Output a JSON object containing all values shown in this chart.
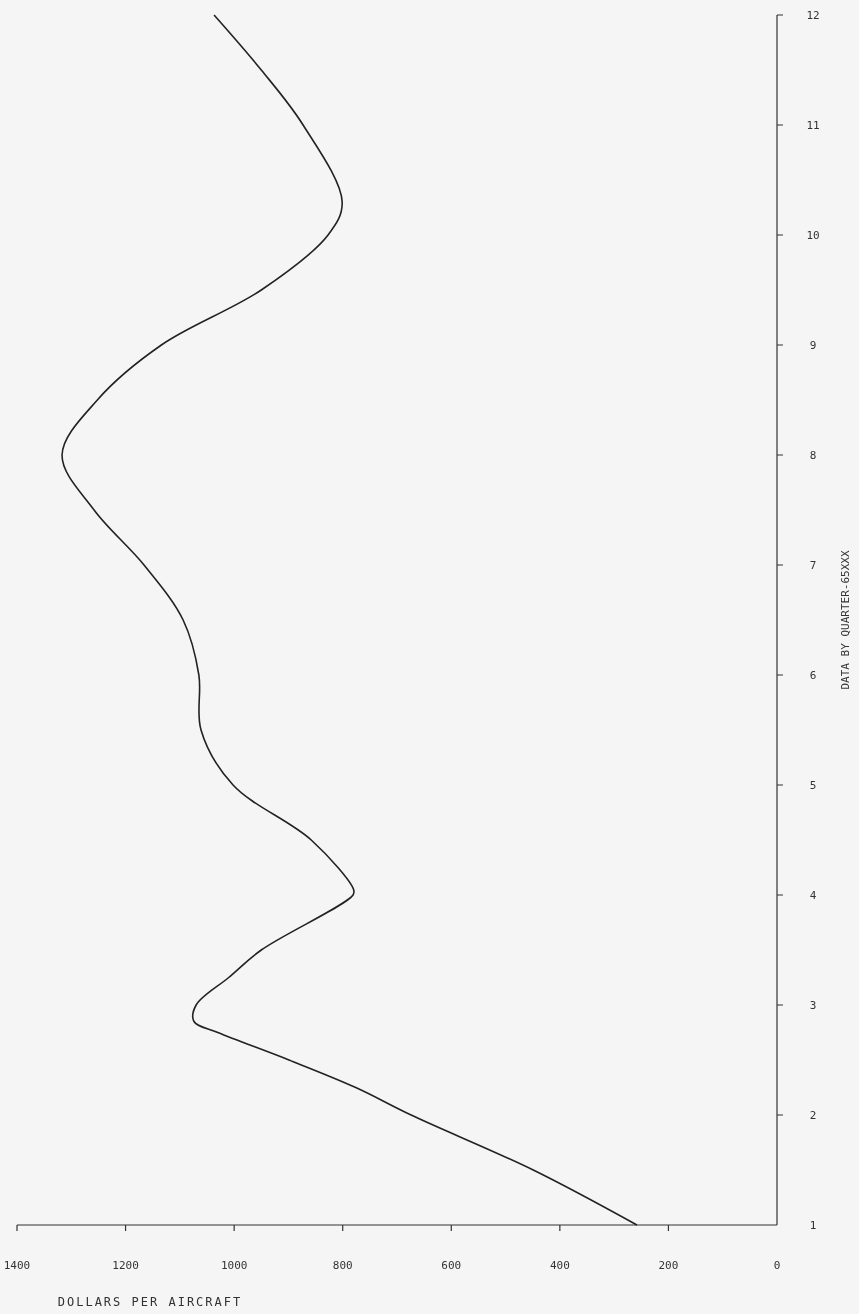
{
  "chart_data": {
    "type": "line",
    "xlabel": "DOLLARS PER AIRCRAFT",
    "ylabel": "DATA BY QUARTER-65XXX",
    "series": [
      {
        "color": "#222222",
        "x": [
          258,
          449,
          674,
          776,
          899,
          1030,
          1074,
          1070,
          1010,
          950,
          781,
          780,
          858,
          1002,
          1061,
          1065,
          1094,
          1166,
          1258,
          1317,
          1252,
          1134,
          950,
          827,
          801,
          873,
          950,
          1037
        ],
        "values": [
          1,
          1.5,
          2,
          2.25,
          2.5,
          2.75,
          2.85,
          3,
          3.25,
          3.5,
          4,
          4.05,
          4.5,
          5,
          5.5,
          6,
          6.5,
          7,
          7.5,
          8,
          8.5,
          9,
          9.5,
          10,
          10.3,
          11,
          11.5,
          12
        ]
      }
    ],
    "xlim": [
      1400,
      0
    ],
    "xticks": [
      1400,
      1200,
      1000,
      800,
      600,
      400,
      200,
      0
    ],
    "ylim": [
      1,
      12
    ],
    "yticks": [
      1,
      2,
      3,
      4,
      5,
      6,
      7,
      8,
      9,
      10,
      11,
      12
    ],
    "grid": false,
    "marker": "none",
    "line_style": "solid"
  }
}
